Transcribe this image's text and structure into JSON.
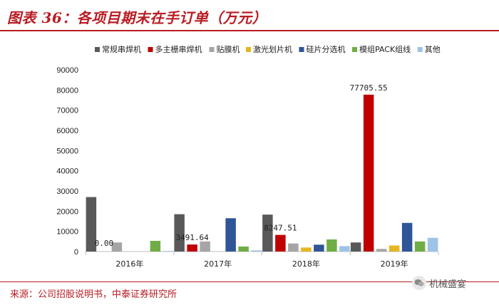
{
  "header": {
    "title": "图表 36：各项目期末在手订单（万元）"
  },
  "footer": {
    "source": "来源：公司招股说明书，中泰证券研究所",
    "watermark": "机械盛宴"
  },
  "chart_data": {
    "type": "bar",
    "title": "图表 36：各项目期末在手订单（万元）",
    "xlabel": "",
    "ylabel": "",
    "ylim": [
      0,
      90000
    ],
    "yticks": [
      0,
      10000,
      20000,
      30000,
      40000,
      50000,
      60000,
      70000,
      80000,
      90000
    ],
    "grid": false,
    "legend_position": "top",
    "categories": [
      "2016年",
      "2017年",
      "2018年",
      "2019年"
    ],
    "series": [
      {
        "name": "常规串焊机",
        "color": "#595959",
        "values": [
          27000,
          18500,
          18300,
          4500
        ]
      },
      {
        "name": "多主栅串焊机",
        "color": "#c00000",
        "values": [
          0.0,
          3491.64,
          8247.51,
          77705.55
        ]
      },
      {
        "name": "贴膜机",
        "color": "#a5a5a5",
        "values": [
          4500,
          5000,
          4000,
          1300
        ]
      },
      {
        "name": "激光划片机",
        "color": "#e5b61f",
        "values": [
          0,
          0,
          2000,
          3000
        ]
      },
      {
        "name": "硅片分选机",
        "color": "#2f5597",
        "values": [
          0,
          16500,
          3400,
          14200
        ]
      },
      {
        "name": "模组PACK组线",
        "color": "#70ad47",
        "values": [
          5300,
          2500,
          6000,
          5000
        ]
      },
      {
        "name": "其他",
        "color": "#9dc3e6",
        "values": [
          300,
          600,
          2700,
          6800
        ]
      }
    ],
    "data_labels": [
      {
        "series": "多主栅串焊机",
        "category": "2016年",
        "text": "0.00"
      },
      {
        "series": "多主栅串焊机",
        "category": "2017年",
        "text": "3491.64"
      },
      {
        "series": "多主栅串焊机",
        "category": "2018年",
        "text": "8247.51"
      },
      {
        "series": "多主栅串焊机",
        "category": "2019年",
        "text": "77705.55"
      }
    ]
  }
}
